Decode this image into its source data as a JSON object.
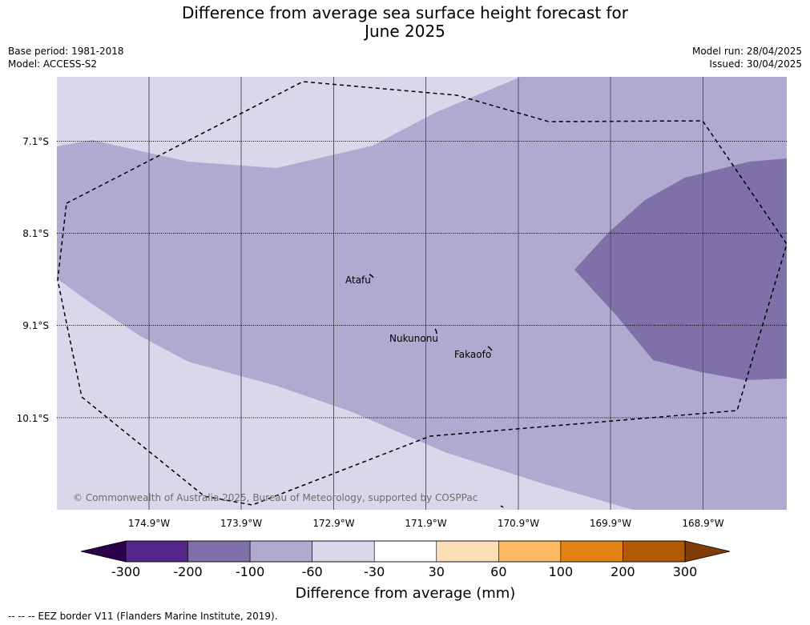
{
  "title_line1": "Difference from average sea surface height forecast for",
  "title_line2": "June 2025",
  "base_period": "Base period: 1981-2018",
  "model": "Model: ACCESS-S2",
  "model_run": "Model run: 28/04/2025",
  "issued": "Issued: 30/04/2025",
  "latitudes": [
    "7.1°S",
    "8.1°S",
    "9.1°S",
    "10.1°S"
  ],
  "longitudes": [
    "174.9°W",
    "173.9°W",
    "172.9°W",
    "171.9°W",
    "170.9°W",
    "169.9°W",
    "168.9°W"
  ],
  "places": [
    {
      "name": "Atafu"
    },
    {
      "name": "Nukunonu"
    },
    {
      "name": "Fakaofo"
    }
  ],
  "copyright": "© Commonwealth of Australia 2025, Bureau of Meteorology, supported by COSPPac",
  "colorbar": {
    "label": "Difference from average (mm)",
    "ticks": [
      "-300",
      "-200",
      "-100",
      "-60",
      "-30",
      "30",
      "60",
      "100",
      "200",
      "300"
    ],
    "colors": [
      "#54268a",
      "#7f70aa",
      "#b0a9d0",
      "#d8d8ea",
      "#ffffff",
      "#fee0b6",
      "#fdb863",
      "#e08214",
      "#b35806"
    ],
    "under_color": "#2d004b",
    "over_color": "#7f3b08"
  },
  "footer": "--  --  -- EEZ border V11 (Flanders Marine Institute, 2019)."
}
